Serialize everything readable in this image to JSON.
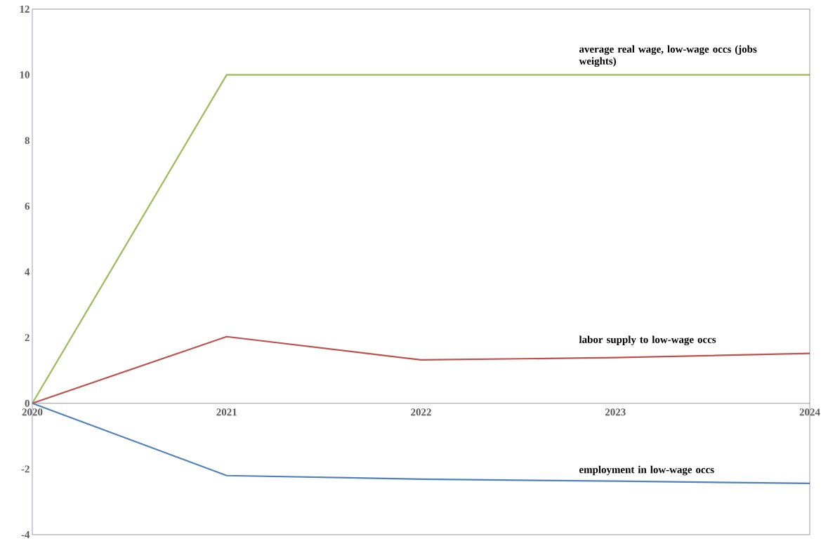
{
  "chart_data": {
    "type": "line",
    "x": [
      2020,
      2021,
      2022,
      2023,
      2024
    ],
    "xlim": [
      2020,
      2024
    ],
    "xticks": [
      2020,
      2021,
      2022,
      2023,
      2024
    ],
    "ylim": [
      -4,
      12
    ],
    "yticks": [
      -4,
      -2,
      0,
      2,
      4,
      6,
      8,
      10,
      12
    ],
    "grid": false,
    "marker": "none",
    "line_style": "solid",
    "series": [
      {
        "name": "average real wage, low-wage occs (jobs weights)",
        "color": "#9bbb59",
        "values": [
          0,
          10,
          10,
          10,
          10
        ]
      },
      {
        "name": "labor supply to low-wage occs",
        "color": "#c0504d",
        "values": [
          0,
          2.03,
          1.32,
          1.39,
          1.52
        ]
      },
      {
        "name": "employment in low-wage occs",
        "color": "#4f81bd",
        "values": [
          0,
          -2.2,
          -2.31,
          -2.37,
          -2.44
        ]
      }
    ]
  }
}
